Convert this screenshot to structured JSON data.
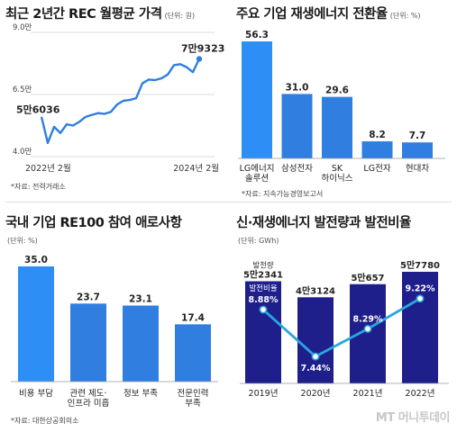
{
  "colors": {
    "blue_dark": "#1f1f8c",
    "blue_mid": "#2f7ee0",
    "blue_light": "#2d8ff5",
    "line_cyan": "#2aa6e0"
  },
  "panels": {
    "rec": {
      "title": "최근 2년간 REC 월평균 가격",
      "unit": "(단위: 원)",
      "source": "*자료: 전력거래소"
    },
    "conversion": {
      "title": "주요 기업 재생에너지 전환율",
      "unit": "(단위: %)",
      "source": "*자료: 지속가능경영보고서"
    },
    "re100": {
      "title": "국내 기업 RE100 참여 애로사항",
      "unit": "(단위: %)",
      "source": "*자료: 대한상공회의소"
    },
    "generation": {
      "title": "신·재생에너지 발전량과 발전비율",
      "unit": "(단위: GWh)"
    }
  },
  "logo_text": "MT 머니투데이",
  "chart_data": [
    {
      "type": "line",
      "title": "최근 2년간 REC 월평균 가격",
      "unit": "(단위: 원)",
      "y_ticks": [
        "9.0만",
        "6.5만",
        "4.0만"
      ],
      "ylim": [
        40000,
        90000
      ],
      "x_labels": [
        "2022년 2월",
        "2024년 2월"
      ],
      "start_label": "5만6036",
      "end_label": "7만9323",
      "values": [
        56036,
        45500,
        52000,
        49500,
        53000,
        52500,
        54000,
        56000,
        56800,
        57500,
        57200,
        58000,
        61000,
        62500,
        62800,
        63500,
        69500,
        71000,
        70800,
        71500,
        73000,
        76800,
        77200,
        76000,
        74000,
        79323
      ]
    },
    {
      "type": "bar",
      "title": "주요 기업 재생에너지 전환율",
      "unit": "(단위: %)",
      "categories": [
        "LG에너지\n솔루션",
        "삼성전자",
        "SK\n하이닉스",
        "LG전자",
        "현대차"
      ],
      "values": [
        56.3,
        31.0,
        29.6,
        8.2,
        7.7
      ],
      "value_labels": [
        "56.3",
        "31.0",
        "29.6",
        "8.2",
        "7.7"
      ]
    },
    {
      "type": "bar",
      "title": "국내 기업 RE100 참여 애로사항",
      "unit": "(단위: %)",
      "categories": [
        "비용 부담",
        "관련 제도·\n인프라 미흡",
        "정보 부족",
        "전문인력\n부족"
      ],
      "values": [
        35.0,
        23.7,
        23.1,
        17.4
      ],
      "value_labels": [
        "35.0",
        "23.7",
        "23.1",
        "17.4"
      ]
    },
    {
      "type": "bar",
      "title": "신·재생에너지 발전량과 발전비율",
      "unit": "(단위: GWh)",
      "categories": [
        "2019년",
        "2020년",
        "2021년",
        "2022년"
      ],
      "bar_label_header": "발전량",
      "bar_values": [
        52341,
        43124,
        50657,
        57780
      ],
      "bar_value_labels": [
        "5만2341",
        "4만3124",
        "5만657",
        "5만7780"
      ],
      "line_label_header": "발전비율",
      "line_values": [
        8.88,
        7.44,
        8.29,
        9.22
      ],
      "line_value_labels": [
        "8.88%",
        "7.44%",
        "8.29%",
        "9.22%"
      ]
    }
  ]
}
